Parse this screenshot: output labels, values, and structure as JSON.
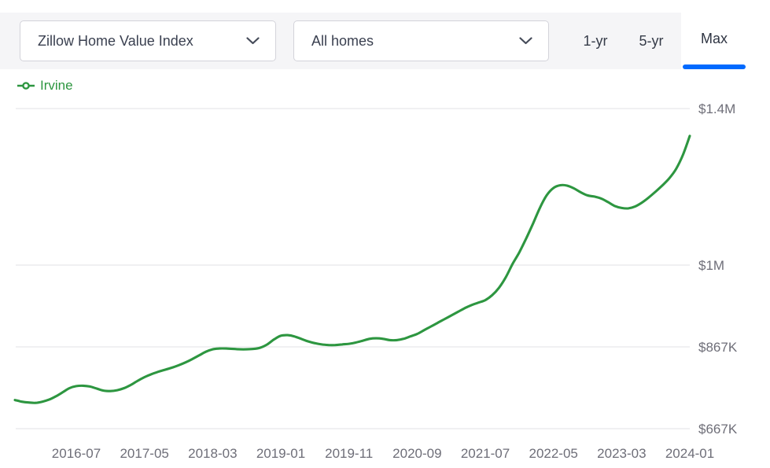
{
  "toolbar": {
    "metric_dropdown": {
      "value": "Zillow Home Value Index"
    },
    "home_type_dropdown": {
      "value": "All homes"
    },
    "range_buttons": [
      {
        "label": "1-yr",
        "active": false
      },
      {
        "label": "5-yr",
        "active": false
      },
      {
        "label": "Max",
        "active": true
      }
    ]
  },
  "legend": {
    "label": "Irvine"
  },
  "colors": {
    "series_green": "#2d9640",
    "accent_blue": "#006aff",
    "axis_text": "#6e6e78",
    "grid_line": "#ececee",
    "toolbar_bg": "#f5f5f7"
  },
  "chart_data": {
    "type": "line",
    "title": "",
    "legend_position": "top-left",
    "y_axis_side": "right",
    "grid": true,
    "x_start": "2015-10",
    "x_step_months": 1,
    "x_tick_labels": [
      "2016-07",
      "2017-05",
      "2018-03",
      "2019-01",
      "2019-11",
      "2020-09",
      "2021-07",
      "2022-05",
      "2023-03",
      "2024-01"
    ],
    "y_ticks": [
      {
        "label": "$1.4M",
        "value": 1400000
      },
      {
        "label": "$1M",
        "value": 1000000
      },
      {
        "label": "$867K",
        "value": 867000
      },
      {
        "label": "$667K",
        "value": 667000
      }
    ],
    "series": [
      {
        "name": "Irvine",
        "color": "#2d9640",
        "values": [
          737000,
          733000,
          731000,
          730000,
          733000,
          738000,
          746000,
          756000,
          766000,
          771000,
          772000,
          770000,
          765000,
          760000,
          759000,
          761000,
          766000,
          774000,
          784000,
          793000,
          800000,
          806000,
          811000,
          816000,
          822000,
          829000,
          837000,
          846000,
          855000,
          861000,
          863000,
          863000,
          862000,
          861000,
          861000,
          862000,
          865000,
          871000,
          879000,
          885000,
          886000,
          884000,
          880000,
          876000,
          873000,
          871000,
          870000,
          870000,
          871000,
          872000,
          874000,
          877000,
          880000,
          881000,
          880000,
          878000,
          878000,
          880000,
          884000,
          888000,
          894000,
          900000,
          906000,
          912000,
          918000,
          924000,
          930000,
          935000,
          939000,
          943000,
          951000,
          963000,
          980000,
          1003000,
          1033000,
          1068000,
          1106000,
          1146000,
          1178000,
          1197000,
          1204000,
          1203000,
          1196000,
          1186000,
          1178000,
          1175000,
          1170000,
          1161000,
          1151000,
          1146000,
          1145000,
          1150000,
          1160000,
          1173000,
          1188000,
          1204000,
          1222000,
          1246000,
          1282000,
          1330000
        ]
      }
    ]
  }
}
